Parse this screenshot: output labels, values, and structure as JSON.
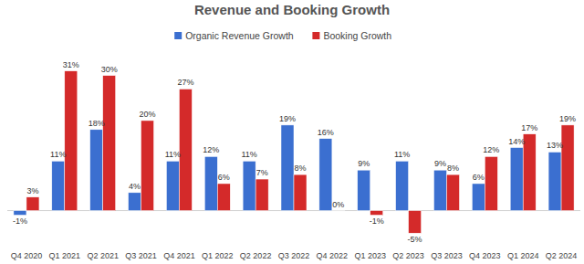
{
  "chart_data": {
    "type": "bar",
    "title": "Revenue and Booking Growth",
    "categories": [
      "Q4 2020",
      "Q1 2021",
      "Q2 2021",
      "Q3 2021",
      "Q4 2021",
      "Q1 2022",
      "Q2 2022",
      "Q3 2022",
      "Q4 2022",
      "Q1 2023",
      "Q2 2023",
      "Q3 2023",
      "Q4 2023",
      "Q1 2024",
      "Q2 2024"
    ],
    "series": [
      {
        "name": "Organic Revenue Growth",
        "color": "#3b6fd0",
        "values": [
          -1,
          11,
          18,
          4,
          11,
          12,
          11,
          19,
          16,
          9,
          11,
          9,
          6,
          14,
          13
        ],
        "value_labels": [
          "-1%",
          "11%",
          "18%",
          "4%",
          "11%",
          "12%",
          "11%",
          "19%",
          "16%",
          "9%",
          "11%",
          "9%",
          "6%",
          "14%",
          "13%"
        ]
      },
      {
        "name": "Booking Growth",
        "color": "#d42a2a",
        "values": [
          3,
          31,
          30,
          20,
          27,
          6,
          7,
          8,
          0,
          -1,
          -5,
          8,
          12,
          17,
          19
        ],
        "value_labels": [
          "3%",
          "31%",
          "30%",
          "20%",
          "27%",
          "6%",
          "7%",
          "8%",
          "0%",
          "-1%",
          "-5%",
          "8%",
          "12%",
          "17%",
          "19%"
        ]
      }
    ],
    "ylim": [
      -8,
      35
    ],
    "grid": false,
    "legend": "top",
    "data_labels": true,
    "tick_labels": "x"
  }
}
